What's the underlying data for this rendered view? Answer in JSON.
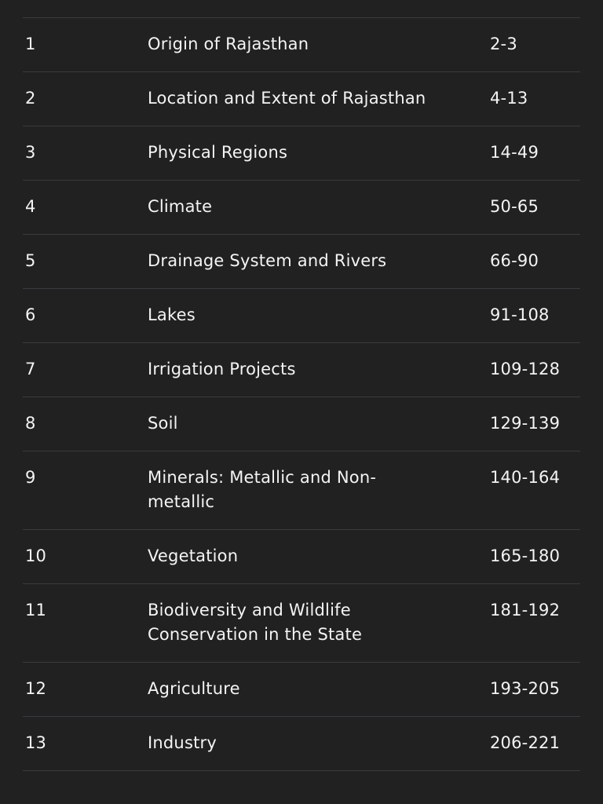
{
  "table": {
    "rows": [
      [
        "1",
        "Origin of Rajasthan",
        "2-3"
      ],
      [
        "2",
        "Location and Extent of Rajasthan",
        "4-13"
      ],
      [
        "3",
        "Physical Regions",
        "14-49"
      ],
      [
        "4",
        "Climate",
        "50-65"
      ],
      [
        "5",
        "Drainage System and Rivers",
        "66-90"
      ],
      [
        "6",
        "Lakes",
        "91-108"
      ],
      [
        "7",
        "Irrigation Projects",
        "109-128"
      ],
      [
        "8",
        "Soil",
        "129-139"
      ],
      [
        "9",
        "Minerals: Metallic and Non-metallic",
        "140-164"
      ],
      [
        "10",
        "Vegetation",
        "165-180"
      ],
      [
        "11",
        "Biodiversity and Wildlife Conservation in the State",
        "181-192"
      ],
      [
        "12",
        "Agriculture",
        "193-205"
      ],
      [
        "13",
        "Industry",
        "206-221"
      ]
    ]
  }
}
